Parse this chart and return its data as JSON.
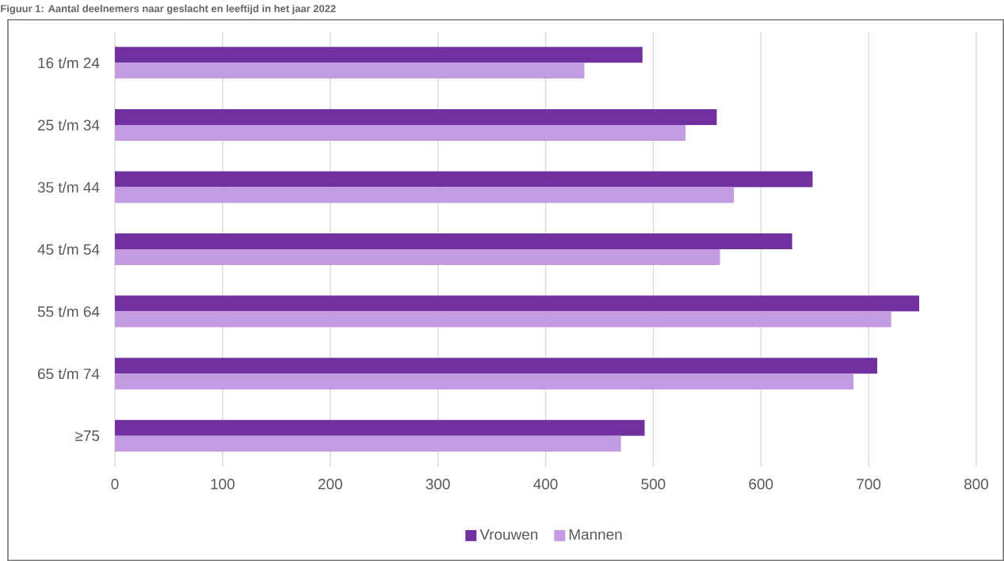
{
  "chart_data": {
    "type": "bar",
    "orientation": "horizontal",
    "title": "Figuur 1: Aantal deelnemers naar geslacht en leeftijd in het jaar 2022",
    "categories": [
      "16 t/m 24",
      "25 t/m 34",
      "35 t/m 44",
      "45 t/m 54",
      "55 t/m 64",
      "65 t/m 74",
      "≥75"
    ],
    "series": [
      {
        "name": "Vrouwen",
        "color": "#7030a0",
        "values": [
          490,
          559,
          648,
          629,
          747,
          708,
          492
        ]
      },
      {
        "name": "Mannen",
        "color": "#c39be0",
        "values": [
          436,
          530,
          575,
          562,
          721,
          686,
          470
        ]
      }
    ],
    "xlim": [
      0,
      800
    ],
    "xticks": [
      0,
      100,
      200,
      300,
      400,
      500,
      600,
      700,
      800
    ],
    "grid": "x",
    "legend": "bottom"
  }
}
